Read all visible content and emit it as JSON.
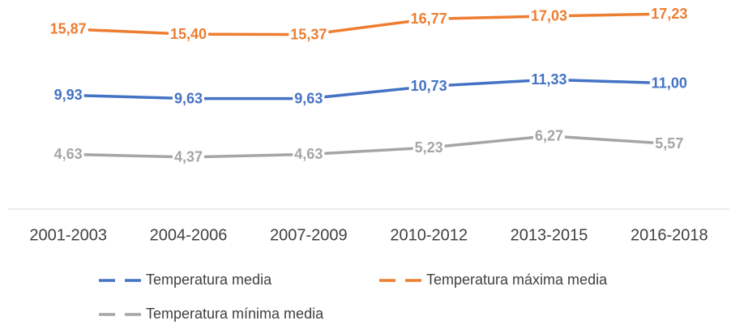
{
  "chart_data": {
    "type": "line",
    "categories": [
      "2001-2003",
      "2004-2006",
      "2007-2009",
      "2010-2012",
      "2013-2015",
      "2016-2018"
    ],
    "series": [
      {
        "name": "Temperatura media",
        "color": "#4472c4",
        "values": [
          9.93,
          9.63,
          9.63,
          10.73,
          11.33,
          11.0
        ],
        "value_labels": [
          "9,93",
          "9,63",
          "9,63",
          "10,73",
          "11,33",
          "11,00"
        ]
      },
      {
        "name": "Temperatura máxima media",
        "color": "#ed7d31",
        "values": [
          15.87,
          15.4,
          15.37,
          16.77,
          17.03,
          17.23
        ],
        "value_labels": [
          "15,87",
          "15,40",
          "15,37",
          "16,77",
          "17,03",
          "17,23"
        ]
      },
      {
        "name": "Temperatura mínima media",
        "color": "#a5a5a5",
        "values": [
          4.63,
          4.37,
          4.63,
          5.23,
          6.27,
          5.57
        ],
        "value_labels": [
          "4,63",
          "4,37",
          "4,63",
          "5,23",
          "6,27",
          "5,57"
        ]
      }
    ]
  }
}
